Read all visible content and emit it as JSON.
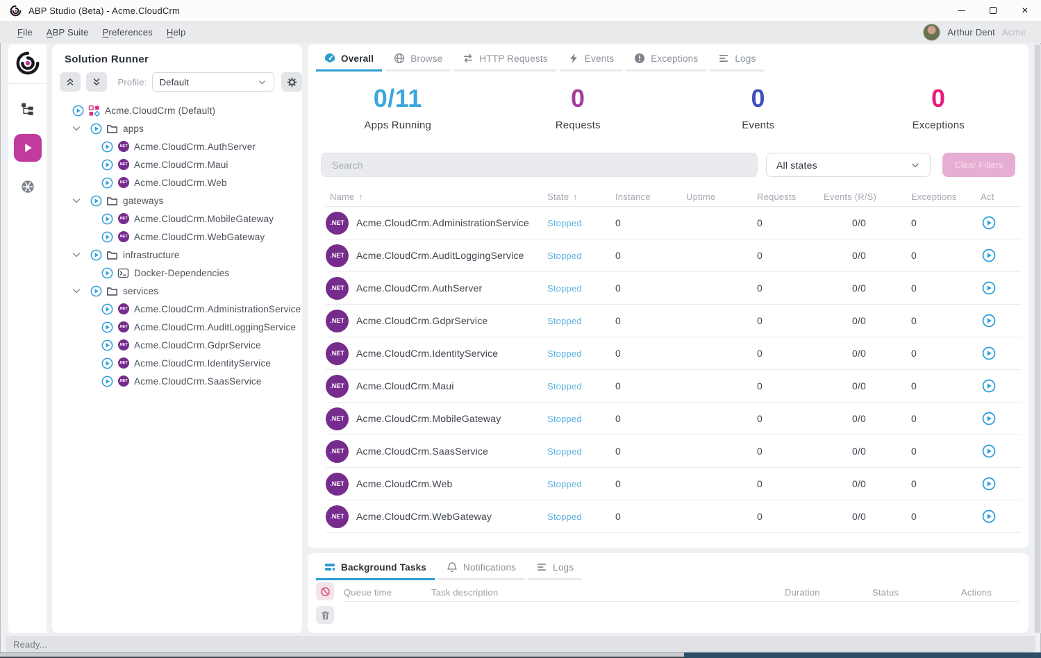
{
  "window": {
    "title": "ABP Studio (Beta) - Acme.CloudCrm"
  },
  "menu": {
    "items": [
      "File",
      "ABP Suite",
      "Preferences",
      "Help"
    ],
    "user": {
      "name": "Arthur Dent",
      "tenant": "Acme"
    }
  },
  "activity_bar": {
    "items": [
      "abp-logo",
      "solution-explorer",
      "solution-runner",
      "kubernetes"
    ]
  },
  "solution_runner": {
    "title": "Solution Runner",
    "profile_label": "Profile:",
    "profile_value": "Default",
    "tree": [
      {
        "label": "Acme.CloudCrm (Default)",
        "icon": "solution",
        "level": 0,
        "chevron": false
      },
      {
        "label": "apps",
        "icon": "folder",
        "level": 1,
        "chevron": true
      },
      {
        "label": "Acme.CloudCrm.AuthServer",
        "icon": "dotnet",
        "level": 2,
        "chevron": false
      },
      {
        "label": "Acme.CloudCrm.Maui",
        "icon": "dotnet",
        "level": 2,
        "chevron": false
      },
      {
        "label": "Acme.CloudCrm.Web",
        "icon": "dotnet",
        "level": 2,
        "chevron": false
      },
      {
        "label": "gateways",
        "icon": "folder",
        "level": 1,
        "chevron": true
      },
      {
        "label": "Acme.CloudCrm.MobileGateway",
        "icon": "dotnet",
        "level": 2,
        "chevron": false
      },
      {
        "label": "Acme.CloudCrm.WebGateway",
        "icon": "dotnet",
        "level": 2,
        "chevron": false
      },
      {
        "label": "infrastructure",
        "icon": "folder",
        "level": 1,
        "chevron": true
      },
      {
        "label": "Docker-Dependencies",
        "icon": "terminal",
        "level": 2,
        "chevron": false
      },
      {
        "label": "services",
        "icon": "folder",
        "level": 1,
        "chevron": true
      },
      {
        "label": "Acme.CloudCrm.AdministrationService",
        "icon": "dotnet",
        "level": 2,
        "chevron": false
      },
      {
        "label": "Acme.CloudCrm.AuditLoggingService",
        "icon": "dotnet",
        "level": 2,
        "chevron": false
      },
      {
        "label": "Acme.CloudCrm.GdprService",
        "icon": "dotnet",
        "level": 2,
        "chevron": false
      },
      {
        "label": "Acme.CloudCrm.IdentityService",
        "icon": "dotnet",
        "level": 2,
        "chevron": false
      },
      {
        "label": "Acme.CloudCrm.SaasService",
        "icon": "dotnet",
        "level": 2,
        "chevron": false
      }
    ]
  },
  "main": {
    "tabs": [
      {
        "label": "Overall",
        "icon": "gauge",
        "active": true
      },
      {
        "label": "Browse",
        "icon": "globe",
        "active": false
      },
      {
        "label": "HTTP Requests",
        "icon": "arrows",
        "active": false
      },
      {
        "label": "Events",
        "icon": "lightning",
        "active": false
      },
      {
        "label": "Exceptions",
        "icon": "exclamation",
        "active": false
      },
      {
        "label": "Logs",
        "icon": "lines",
        "active": false
      }
    ],
    "stats": [
      {
        "value": "0/11",
        "label": "Apps Running",
        "color": "#3aa8dd"
      },
      {
        "value": "0",
        "label": "Requests",
        "color": "#a53d9b"
      },
      {
        "value": "0",
        "label": "Events",
        "color": "#3f4fbc"
      },
      {
        "value": "0",
        "label": "Exceptions",
        "color": "#ec1a7f"
      }
    ],
    "filters": {
      "search_placeholder": "Search",
      "state_filter_value": "All states",
      "clear_button_label": "Clear Filters"
    },
    "table": {
      "columns": [
        {
          "label": "Name",
          "sorted": true
        },
        {
          "label": "State",
          "sorted": true
        },
        {
          "label": "Instance",
          "sorted": false
        },
        {
          "label": "Uptime",
          "sorted": false
        },
        {
          "label": "Requests",
          "sorted": false
        },
        {
          "label": "Events (R/S)",
          "sorted": false
        },
        {
          "label": "Exceptions",
          "sorted": false
        },
        {
          "label": "Act",
          "sorted": false
        }
      ],
      "rows": [
        {
          "name": "Acme.CloudCrm.AdministrationService",
          "state": "Stopped",
          "instance": "0",
          "uptime": "",
          "requests": "0",
          "events": "0/0",
          "exceptions": "0"
        },
        {
          "name": "Acme.CloudCrm.AuditLoggingService",
          "state": "Stopped",
          "instance": "0",
          "uptime": "",
          "requests": "0",
          "events": "0/0",
          "exceptions": "0"
        },
        {
          "name": "Acme.CloudCrm.AuthServer",
          "state": "Stopped",
          "instance": "0",
          "uptime": "",
          "requests": "0",
          "events": "0/0",
          "exceptions": "0"
        },
        {
          "name": "Acme.CloudCrm.GdprService",
          "state": "Stopped",
          "instance": "0",
          "uptime": "",
          "requests": "0",
          "events": "0/0",
          "exceptions": "0"
        },
        {
          "name": "Acme.CloudCrm.IdentityService",
          "state": "Stopped",
          "instance": "0",
          "uptime": "",
          "requests": "0",
          "events": "0/0",
          "exceptions": "0"
        },
        {
          "name": "Acme.CloudCrm.Maui",
          "state": "Stopped",
          "instance": "0",
          "uptime": "",
          "requests": "0",
          "events": "0/0",
          "exceptions": "0"
        },
        {
          "name": "Acme.CloudCrm.MobileGateway",
          "state": "Stopped",
          "instance": "0",
          "uptime": "",
          "requests": "0",
          "events": "0/0",
          "exceptions": "0"
        },
        {
          "name": "Acme.CloudCrm.SaasService",
          "state": "Stopped",
          "instance": "0",
          "uptime": "",
          "requests": "0",
          "events": "0/0",
          "exceptions": "0"
        },
        {
          "name": "Acme.CloudCrm.Web",
          "state": "Stopped",
          "instance": "0",
          "uptime": "",
          "requests": "0",
          "events": "0/0",
          "exceptions": "0"
        },
        {
          "name": "Acme.CloudCrm.WebGateway",
          "state": "Stopped",
          "instance": "0",
          "uptime": "",
          "requests": "0",
          "events": "0/0",
          "exceptions": "0"
        }
      ]
    }
  },
  "bottom_panel": {
    "tabs": [
      {
        "label": "Background Tasks",
        "icon": "stack",
        "active": true
      },
      {
        "label": "Notifications",
        "icon": "bell",
        "active": false
      },
      {
        "label": "Logs",
        "icon": "lines",
        "active": false
      }
    ],
    "columns": [
      "Queue time",
      "Task description",
      "Duration",
      "Status",
      "Actions"
    ]
  },
  "status_bar": {
    "text": "Ready..."
  },
  "colors": {
    "accent_blue": "#2f9ed8",
    "brand_magenta": "#c13a9e",
    "dotnet_purple": "#762c8c",
    "stopped_state": "#5cb2e0",
    "clear_filters_bg": "#e7aed3"
  }
}
